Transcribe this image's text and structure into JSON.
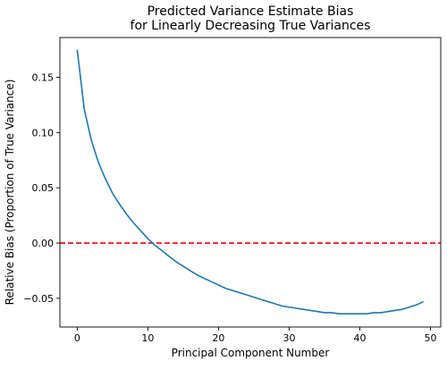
{
  "chart_data": {
    "type": "line",
    "title_lines": [
      "Predicted Variance Estimate Bias",
      "for Linearly Decreasing True Variances"
    ],
    "xlabel": "Principal Component Number",
    "ylabel": "Relative Bias (Proportion of True Variance)",
    "xlim": [
      -2.45,
      51.45
    ],
    "ylim": [
      -0.076,
      0.186
    ],
    "xticks": [
      {
        "value": 0,
        "label": "0"
      },
      {
        "value": 10,
        "label": "10"
      },
      {
        "value": 20,
        "label": "20"
      },
      {
        "value": 30,
        "label": "30"
      },
      {
        "value": 40,
        "label": "40"
      },
      {
        "value": 50,
        "label": "50"
      }
    ],
    "yticks": [
      {
        "value": -0.05,
        "label": "−0.05"
      },
      {
        "value": 0.0,
        "label": "0.00"
      },
      {
        "value": 0.05,
        "label": "0.05"
      },
      {
        "value": 0.1,
        "label": "0.10"
      },
      {
        "value": 0.15,
        "label": "0.15"
      }
    ],
    "grid": false,
    "series": [
      {
        "color": "#1f77b4",
        "x": [
          0,
          1,
          2,
          3,
          4,
          5,
          6,
          7,
          8,
          9,
          10,
          11,
          12,
          13,
          14,
          15,
          16,
          17,
          18,
          19,
          20,
          21,
          22,
          23,
          24,
          25,
          26,
          27,
          28,
          29,
          30,
          31,
          32,
          33,
          34,
          35,
          36,
          37,
          38,
          39,
          40,
          41,
          42,
          43,
          44,
          45,
          46,
          47,
          48,
          49
        ],
        "y": [
          0.175,
          0.121,
          0.093,
          0.073,
          0.058,
          0.045,
          0.035,
          0.026,
          0.018,
          0.011,
          0.004,
          -0.002,
          -0.007,
          -0.012,
          -0.017,
          -0.021,
          -0.025,
          -0.029,
          -0.032,
          -0.035,
          -0.038,
          -0.041,
          -0.043,
          -0.045,
          -0.047,
          -0.049,
          -0.051,
          -0.053,
          -0.055,
          -0.057,
          -0.058,
          -0.059,
          -0.06,
          -0.061,
          -0.062,
          -0.063,
          -0.063,
          -0.064,
          -0.064,
          -0.064,
          -0.064,
          -0.064,
          -0.063,
          -0.063,
          -0.062,
          -0.061,
          -0.06,
          -0.058,
          -0.056,
          -0.053
        ]
      }
    ],
    "reference_line": {
      "y": 0.0,
      "color": "#ff0000",
      "style": "dashed"
    }
  }
}
